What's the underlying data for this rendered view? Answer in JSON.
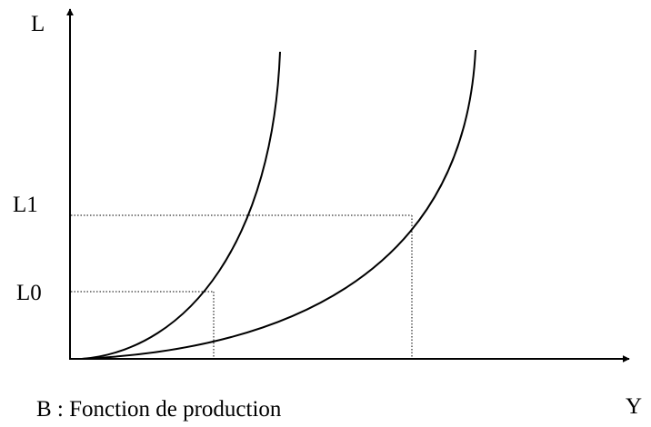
{
  "axes": {
    "y_label": "L",
    "x_label": "Y"
  },
  "levels": {
    "l1": "L1",
    "l0": "L0"
  },
  "caption": "B : Fonction de production"
}
